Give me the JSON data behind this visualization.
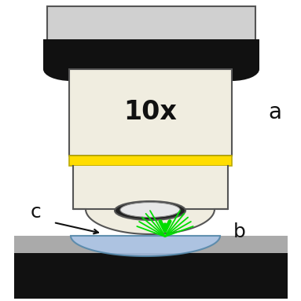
{
  "bg_color": "#ffffff",
  "body_color": "#f0ede0",
  "body_outline": "#555555",
  "top_bar_color": "#d0d0d0",
  "black_bar_color": "#111111",
  "yellow_band_color": "#ffdd00",
  "yellow_band_outline": "#bbaa00",
  "lens_dark_color": "#222222",
  "lens_light_color": "#e8e8e8",
  "slide_grey_color": "#aaaaaa",
  "slide_black_color": "#111111",
  "drop_color": "#aec6e8",
  "drop_outline": "#5588aa",
  "green_color": "#00dd00",
  "label_color": "#111111",
  "label_a": "a",
  "label_b": "b",
  "label_c": "c",
  "magnification": "10x",
  "figsize": [
    3.83,
    3.83
  ],
  "dpi": 100
}
